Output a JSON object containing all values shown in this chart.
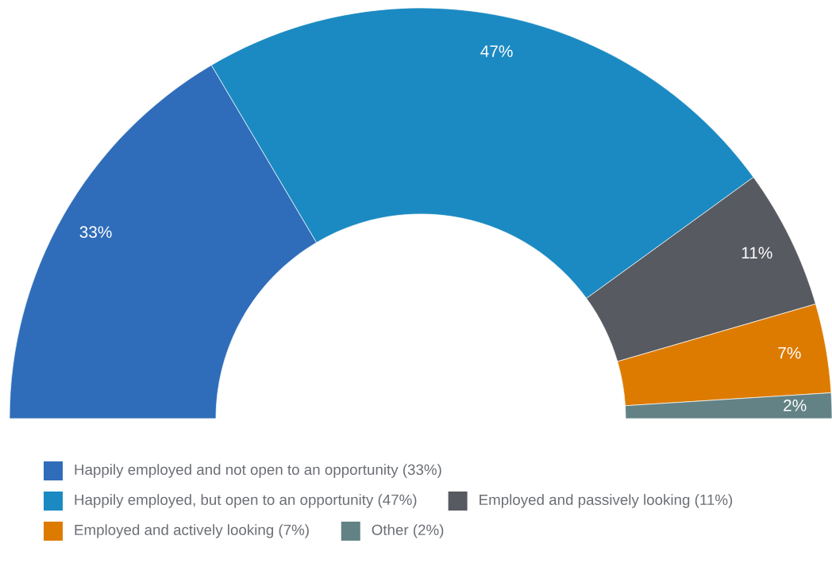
{
  "chart_data": {
    "type": "donut",
    "categories": [
      "Happily employed and not open to an opportunity (33%)",
      "Happily employed, but open to an opportunity (47%)",
      "Employed and passively looking (11%)",
      "Employed and actively looking (7%)",
      "Other (2%)"
    ],
    "values": [
      33,
      47,
      11,
      7,
      2
    ],
    "colors": [
      "#2f6dba",
      "#1c8ac2",
      "#575a60",
      "#dd7b00",
      "#628285"
    ],
    "value_labels": [
      "33%",
      "47%",
      "11%",
      "7%",
      "2%"
    ],
    "legend": "bottom"
  }
}
